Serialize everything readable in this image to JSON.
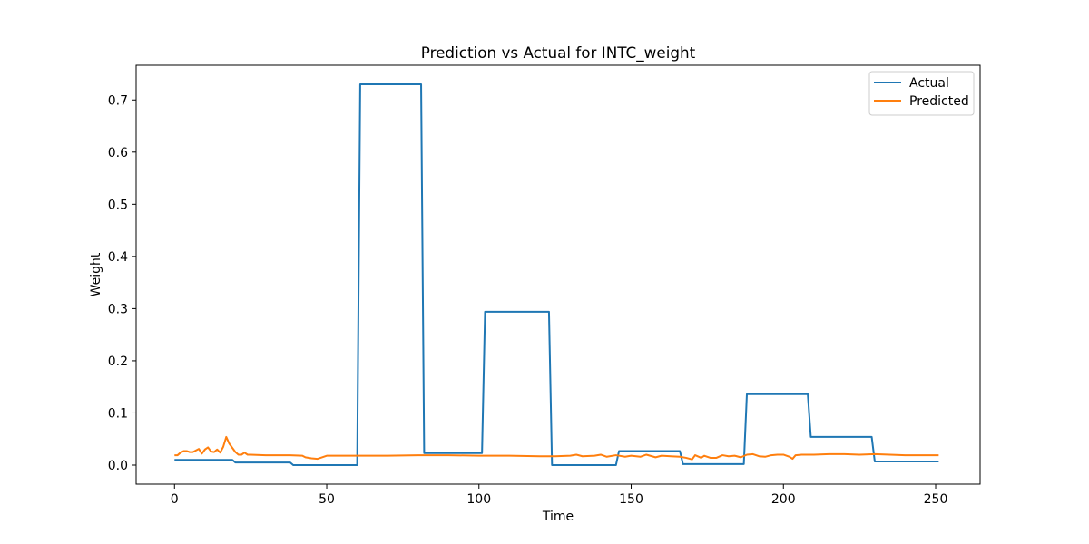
{
  "chart_data": {
    "type": "line",
    "title": "Prediction vs Actual for INTC_weight",
    "xlabel": "Time",
    "ylabel": "Weight",
    "xlim": [
      -12.6,
      264.6
    ],
    "ylim": [
      -0.0365,
      0.7665
    ],
    "xticks": [
      0,
      50,
      100,
      150,
      200,
      250
    ],
    "yticks": [
      0.0,
      0.1,
      0.2,
      0.3,
      0.4,
      0.5,
      0.6,
      0.7
    ],
    "ytick_labels": [
      "0.0",
      "0.1",
      "0.2",
      "0.3",
      "0.4",
      "0.5",
      "0.6",
      "0.7"
    ],
    "grid": false,
    "legend_position": "top-right",
    "series": [
      {
        "name": "Actual",
        "color": "#1f77b4",
        "points": [
          [
            0,
            0.01
          ],
          [
            19,
            0.01
          ],
          [
            20,
            0.005
          ],
          [
            38,
            0.005
          ],
          [
            39,
            0.0
          ],
          [
            60,
            0.0
          ],
          [
            61,
            0.73
          ],
          [
            81,
            0.73
          ],
          [
            82,
            0.023
          ],
          [
            101,
            0.023
          ],
          [
            102,
            0.294
          ],
          [
            123,
            0.294
          ],
          [
            124,
            0.0
          ],
          [
            145,
            0.0
          ],
          [
            146,
            0.027
          ],
          [
            166,
            0.027
          ],
          [
            167,
            0.002
          ],
          [
            187,
            0.002
          ],
          [
            188,
            0.136
          ],
          [
            208,
            0.136
          ],
          [
            209,
            0.054
          ],
          [
            229,
            0.054
          ],
          [
            230,
            0.007
          ],
          [
            251,
            0.007
          ]
        ]
      },
      {
        "name": "Predicted",
        "color": "#ff7f0e",
        "points": [
          [
            0,
            0.019
          ],
          [
            1,
            0.019
          ],
          [
            2,
            0.024
          ],
          [
            3,
            0.027
          ],
          [
            4,
            0.027
          ],
          [
            5,
            0.025
          ],
          [
            6,
            0.025
          ],
          [
            7,
            0.028
          ],
          [
            8,
            0.031
          ],
          [
            9,
            0.022
          ],
          [
            10,
            0.03
          ],
          [
            11,
            0.034
          ],
          [
            12,
            0.026
          ],
          [
            13,
            0.025
          ],
          [
            14,
            0.03
          ],
          [
            15,
            0.024
          ],
          [
            16,
            0.035
          ],
          [
            17,
            0.054
          ],
          [
            18,
            0.041
          ],
          [
            19,
            0.033
          ],
          [
            20,
            0.025
          ],
          [
            21,
            0.02
          ],
          [
            22,
            0.02
          ],
          [
            23,
            0.024
          ],
          [
            24,
            0.02
          ],
          [
            25,
            0.02
          ],
          [
            30,
            0.019
          ],
          [
            38,
            0.019
          ],
          [
            42,
            0.018
          ],
          [
            43,
            0.015
          ],
          [
            45,
            0.013
          ],
          [
            47,
            0.012
          ],
          [
            49,
            0.016
          ],
          [
            50,
            0.018
          ],
          [
            55,
            0.018
          ],
          [
            60,
            0.018
          ],
          [
            70,
            0.018
          ],
          [
            80,
            0.019
          ],
          [
            90,
            0.019
          ],
          [
            100,
            0.018
          ],
          [
            110,
            0.018
          ],
          [
            120,
            0.017
          ],
          [
            125,
            0.017
          ],
          [
            130,
            0.018
          ],
          [
            132,
            0.02
          ],
          [
            134,
            0.017
          ],
          [
            138,
            0.018
          ],
          [
            140,
            0.02
          ],
          [
            142,
            0.016
          ],
          [
            145,
            0.019
          ],
          [
            148,
            0.016
          ],
          [
            150,
            0.018
          ],
          [
            153,
            0.016
          ],
          [
            155,
            0.02
          ],
          [
            158,
            0.015
          ],
          [
            160,
            0.018
          ],
          [
            163,
            0.017
          ],
          [
            166,
            0.016
          ],
          [
            168,
            0.014
          ],
          [
            170,
            0.011
          ],
          [
            171,
            0.019
          ],
          [
            173,
            0.014
          ],
          [
            174,
            0.018
          ],
          [
            176,
            0.014
          ],
          [
            178,
            0.014
          ],
          [
            180,
            0.019
          ],
          [
            182,
            0.017
          ],
          [
            184,
            0.018
          ],
          [
            186,
            0.015
          ],
          [
            188,
            0.02
          ],
          [
            190,
            0.021
          ],
          [
            192,
            0.017
          ],
          [
            194,
            0.016
          ],
          [
            196,
            0.019
          ],
          [
            198,
            0.02
          ],
          [
            200,
            0.02
          ],
          [
            202,
            0.016
          ],
          [
            203,
            0.012
          ],
          [
            204,
            0.019
          ],
          [
            206,
            0.02
          ],
          [
            210,
            0.02
          ],
          [
            215,
            0.021
          ],
          [
            220,
            0.021
          ],
          [
            225,
            0.02
          ],
          [
            230,
            0.021
          ],
          [
            235,
            0.02
          ],
          [
            240,
            0.019
          ],
          [
            245,
            0.019
          ],
          [
            251,
            0.019
          ]
        ]
      }
    ]
  }
}
